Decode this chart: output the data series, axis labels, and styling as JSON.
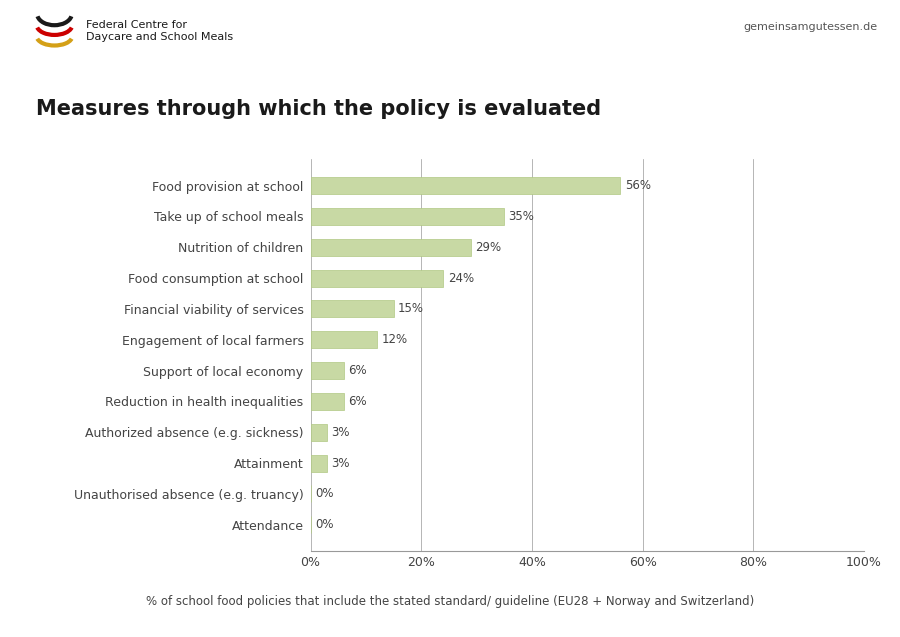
{
  "title": "Measures through which the policy is evaluated",
  "categories": [
    "Attendance",
    "Unauthorised absence (e.g. truancy)",
    "Attainment",
    "Authorized absence (e.g. sickness)",
    "Reduction in health inequalities",
    "Support of local economy",
    "Engagement of local farmers",
    "Financial viability of services",
    "Food consumption at school",
    "Nutrition of children",
    "Take up of school meals",
    "Food provision at school"
  ],
  "values": [
    0,
    0,
    3,
    3,
    6,
    6,
    12,
    15,
    24,
    29,
    35,
    56
  ],
  "bar_color": "#c8d9a4",
  "bar_edge_color": "#b0c882",
  "xlabel": "% of school food policies that include the stated standard/ guideline (EU28 + Norway and Switzerland)",
  "xlim": [
    0,
    100
  ],
  "xticks": [
    0,
    20,
    40,
    60,
    80,
    100
  ],
  "xticklabels": [
    "0%",
    "20%",
    "40%",
    "60%",
    "80%",
    "100%"
  ],
  "grid_color": "#999999",
  "title_fontsize": 15,
  "label_fontsize": 9,
  "tick_fontsize": 9,
  "xlabel_fontsize": 8.5,
  "value_label_fontsize": 8.5,
  "background_color": "#ffffff",
  "header_text": "gemeinsamgutessen.de",
  "header_org": "Federal Centre for\nDaycare and School Meals"
}
